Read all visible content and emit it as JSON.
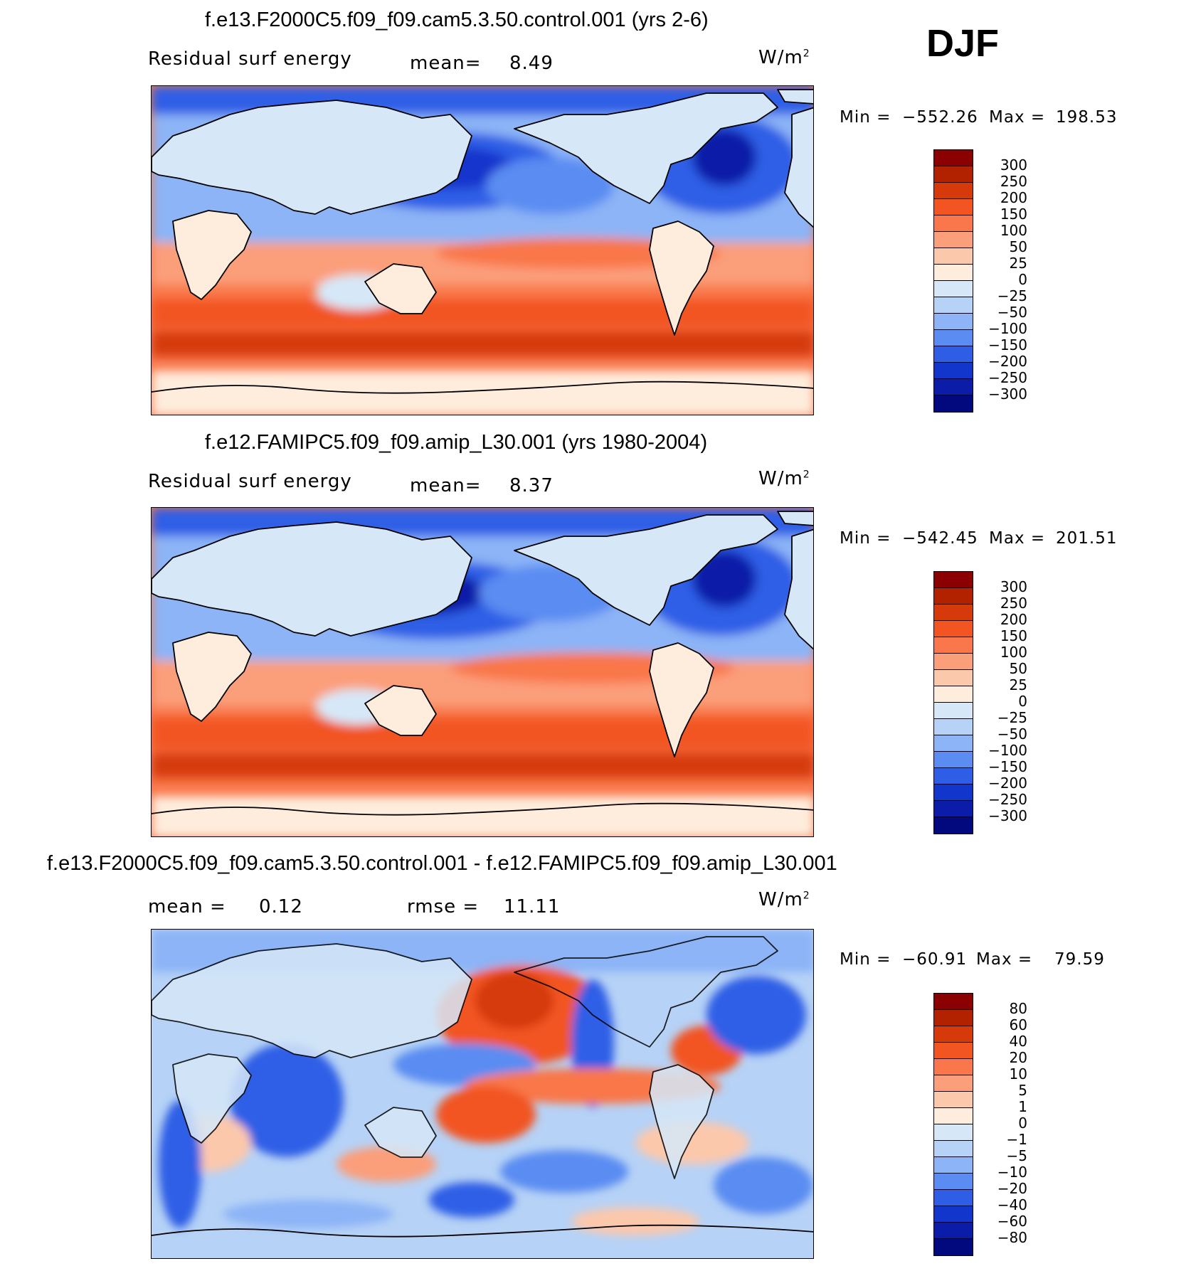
{
  "season": "DJF",
  "units_base": "W/m",
  "units_exp": "2",
  "panels": [
    {
      "title": "f.e13.F2000C5.f09_f09.cam5.3.50.control.001 (yrs 2-6)",
      "left_label": "Residual surf energy",
      "stat_label": "mean=",
      "stat_value": "8.49",
      "min_label": "Min =",
      "min_value": "−552.26",
      "max_label": "Max =",
      "max_value": "198.53"
    },
    {
      "title": "f.e12.FAMIPC5.f09_f09.amip_L30.001 (yrs 1980-2004)",
      "left_label": "Residual surf energy",
      "stat_label": "mean=",
      "stat_value": "8.37",
      "min_label": "Min =",
      "min_value": "−542.45",
      "max_label": "Max =",
      "max_value": "201.51"
    },
    {
      "title": "f.e13.F2000C5.f09_f09.cam5.3.50.control.001 - f.e12.FAMIPC5.f09_f09.amip_L30.001",
      "mean_label": "mean =",
      "mean_value": "0.12",
      "rmse_label": "rmse =",
      "rmse_value": "11.11",
      "min_label": "Min =",
      "min_value": "−60.91",
      "max_label": "Max =",
      "max_value": "79.59"
    }
  ],
  "colorbar_levels": [
    "300",
    "250",
    "200",
    "150",
    "100",
    "50",
    "25",
    "0",
    "−25",
    "−50",
    "−100",
    "−150",
    "−200",
    "−250",
    "−300"
  ],
  "colorbar_diff_levels": [
    "80",
    "60",
    "40",
    "20",
    "10",
    "5",
    "1",
    "0",
    "−1",
    "−5",
    "−10",
    "−20",
    "−40",
    "−60",
    "−80"
  ],
  "colors": [
    "#8b0000",
    "#b22200",
    "#d63a0a",
    "#f25422",
    "#f9774a",
    "#fb9e7a",
    "#fcc8ac",
    "#feecdc",
    "#d6e8f8",
    "#b6d2f6",
    "#8cb4f6",
    "#5a8cf2",
    "#2e5ee6",
    "#1236cc",
    "#0a1ca8",
    "#02087e"
  ]
}
